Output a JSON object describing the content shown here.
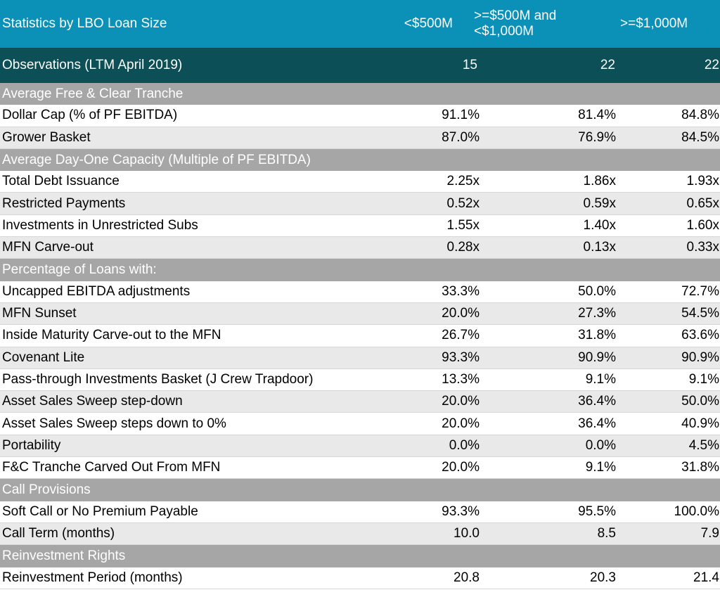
{
  "header": {
    "title": "Statistics by LBO Loan Size",
    "col1": "<$500M",
    "col2_line1": ">=$500M and",
    "col2_line2": "<$1,000M",
    "col3": ">=$1,000M"
  },
  "observations": {
    "label": "Observations (LTM April 2019)",
    "v1": "15",
    "v2": "22",
    "v3": "22"
  },
  "sections": [
    {
      "title": "Average Free & Clear Tranche",
      "rows": [
        {
          "label": "Dollar Cap (% of PF EBITDA)",
          "v1": "91.1%",
          "v2": "81.4%",
          "v3": "84.8%"
        },
        {
          "label": "Grower Basket",
          "v1": "87.0%",
          "v2": "76.9%",
          "v3": "84.5%"
        }
      ]
    },
    {
      "title": "Average Day-One Capacity (Multiple of PF EBITDA)",
      "rows": [
        {
          "label": "Total Debt Issuance",
          "v1": "2.25x",
          "v2": "1.86x",
          "v3": "1.93x"
        },
        {
          "label": "Restricted Payments",
          "v1": "0.52x",
          "v2": "0.59x",
          "v3": "0.65x"
        },
        {
          "label": "Investments in Unrestricted Subs",
          "v1": "1.55x",
          "v2": "1.40x",
          "v3": "1.60x"
        },
        {
          "label": "MFN Carve-out",
          "v1": "0.28x",
          "v2": "0.13x",
          "v3": "0.33x"
        }
      ]
    },
    {
      "title": "Percentage of Loans with:",
      "rows": [
        {
          "label": "Uncapped EBITDA adjustments",
          "v1": "33.3%",
          "v2": "50.0%",
          "v3": "72.7%"
        },
        {
          "label": "MFN Sunset",
          "v1": "20.0%",
          "v2": "27.3%",
          "v3": "54.5%"
        },
        {
          "label": "Inside Maturity Carve-out to the MFN",
          "v1": "26.7%",
          "v2": "31.8%",
          "v3": "63.6%"
        },
        {
          "label": "Covenant Lite",
          "v1": "93.3%",
          "v2": "90.9%",
          "v3": "90.9%"
        },
        {
          "label": "Pass-through Investments Basket (J Crew Trapdoor)",
          "v1": "13.3%",
          "v2": "9.1%",
          "v3": "9.1%"
        },
        {
          "label": "Asset Sales Sweep step-down",
          "v1": "20.0%",
          "v2": "36.4%",
          "v3": "50.0%"
        },
        {
          "label": "Asset Sales Sweep steps down to 0%",
          "v1": "20.0%",
          "v2": "36.4%",
          "v3": "40.9%"
        },
        {
          "label": "Portability",
          "v1": "0.0%",
          "v2": "0.0%",
          "v3": "4.5%"
        },
        {
          "label": "F&C Tranche Carved Out From MFN",
          "v1": "20.0%",
          "v2": "9.1%",
          "v3": "31.8%"
        }
      ]
    },
    {
      "title": "Call Provisions",
      "rows": [
        {
          "label": "Soft Call or No Premium Payable",
          "v1": "93.3%",
          "v2": "95.5%",
          "v3": "100.0%"
        },
        {
          "label": "Call Term (months)",
          "v1": "10.0",
          "v2": "8.5",
          "v3": "7.9"
        }
      ]
    },
    {
      "title": "Reinvestment Rights",
      "rows": [
        {
          "label": "Reinvestment Period (months)",
          "v1": "20.8",
          "v2": "20.3",
          "v3": "21.4"
        }
      ]
    }
  ]
}
